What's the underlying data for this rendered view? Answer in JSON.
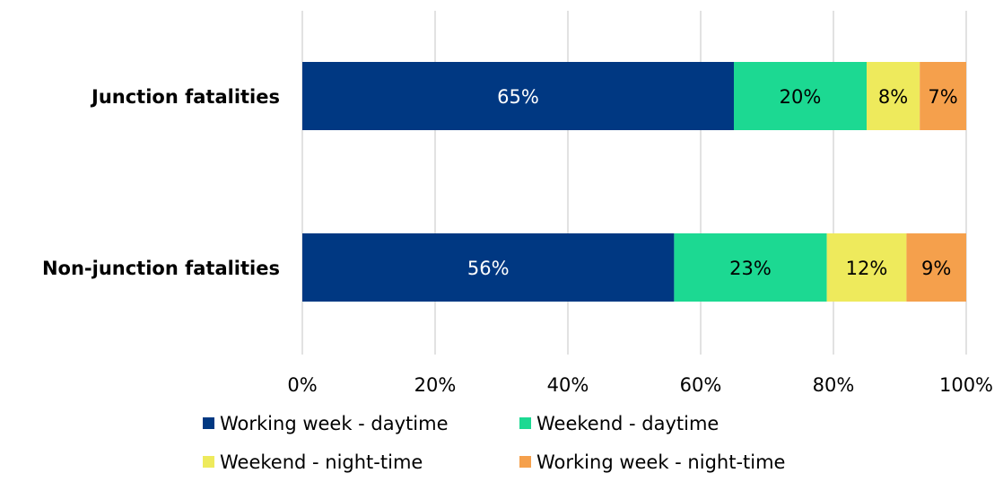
{
  "chart_data": {
    "type": "bar",
    "orientation": "horizontal",
    "stacked": true,
    "categories": [
      "Junction fatalities",
      "Non-junction fatalities"
    ],
    "series": [
      {
        "name": "Working week - daytime",
        "values": [
          65,
          56
        ],
        "labels": [
          "65%",
          "56%"
        ],
        "color": "#003882",
        "label_color": "#ffffff"
      },
      {
        "name": "Weekend - daytime",
        "values": [
          20,
          23
        ],
        "labels": [
          "20%",
          "23%"
        ],
        "color": "#1cd992",
        "label_color": "#000000"
      },
      {
        "name": "Weekend - night-time",
        "values": [
          8,
          12
        ],
        "labels": [
          "8%",
          "12%"
        ],
        "color": "#eeea5c",
        "label_color": "#000000"
      },
      {
        "name": "Working week - night-time",
        "values": [
          7,
          9
        ],
        "labels": [
          "7%",
          "9%"
        ],
        "color": "#f5a04c",
        "label_color": "#000000"
      }
    ],
    "xlim": [
      0,
      100
    ],
    "xticks": [
      0,
      20,
      40,
      60,
      80,
      100
    ],
    "xtick_labels": [
      "0%",
      "20%",
      "40%",
      "60%",
      "80%",
      "100%"
    ],
    "grid": true,
    "legend_position": "bottom",
    "title": "",
    "xlabel": "",
    "ylabel": ""
  }
}
